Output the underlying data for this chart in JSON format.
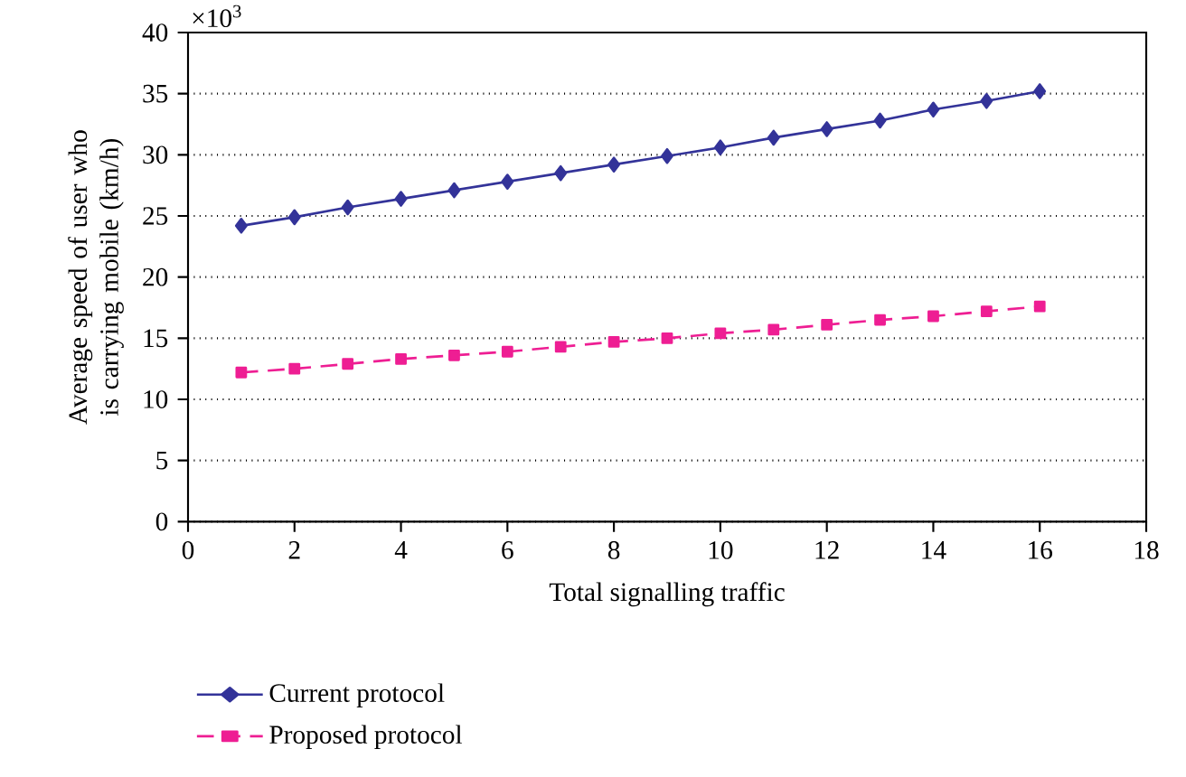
{
  "chart_data": {
    "type": "line",
    "xlabel": "Total signalling traffic",
    "ylabel": "Average speed of user who is carrying mobile (km/h)",
    "annotations": [
      "×10$^{3}$"
    ],
    "x": [
      1,
      2,
      3,
      4,
      5,
      6,
      7,
      8,
      9,
      10,
      11,
      12,
      13,
      14,
      15,
      16
    ],
    "series": [
      {
        "name": "Current protocol",
        "color": "#333399",
        "marker": "diamond",
        "line_style": "solid",
        "values": [
          24.2,
          24.9,
          25.7,
          26.4,
          27.1,
          27.8,
          28.5,
          29.2,
          29.9,
          30.6,
          31.4,
          32.1,
          32.8,
          33.7,
          34.4,
          35.2
        ]
      },
      {
        "name": "Proposed protocol",
        "color": "#ee1e93",
        "marker": "square",
        "line_style": "dashed",
        "values": [
          12.2,
          12.5,
          12.9,
          13.3,
          13.6,
          13.9,
          14.3,
          14.7,
          15.0,
          15.4,
          15.7,
          16.1,
          16.5,
          16.8,
          17.2,
          17.6
        ]
      }
    ],
    "xlim": [
      0,
      18
    ],
    "xticks": [
      0,
      2,
      4,
      6,
      8,
      10,
      12,
      14,
      16,
      18
    ],
    "ylim": [
      0,
      40
    ],
    "yticks": [
      0,
      5,
      10,
      15,
      20,
      25,
      30,
      35,
      40
    ],
    "grid": "y",
    "legend": "bottom"
  }
}
